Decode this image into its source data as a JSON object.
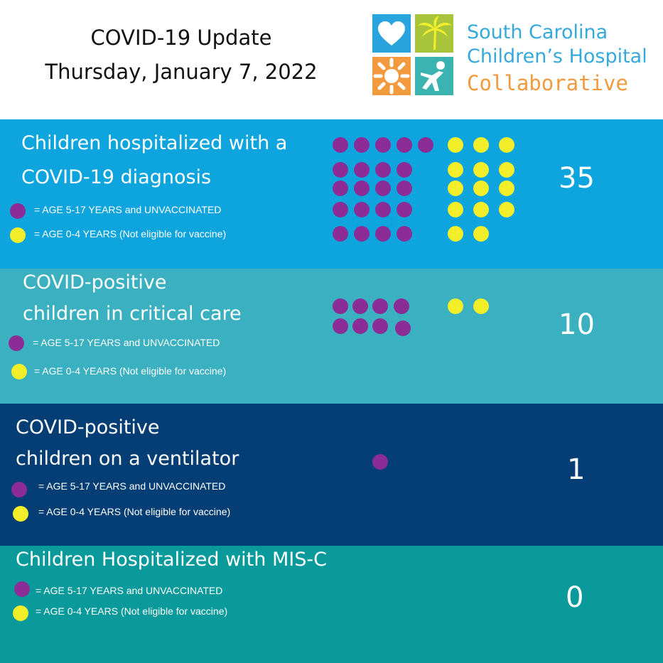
{
  "header": {
    "title_line1": "COVID-19 Update",
    "title_line2": "Thursday, January 7, 2022"
  },
  "logo": {
    "line1": "South Carolina",
    "line2": "Children’s Hospital",
    "line3": "Collaborative",
    "tiles": [
      {
        "icon": "heart-icon",
        "color": "#2aa4dd"
      },
      {
        "icon": "palm-tree-icon",
        "color": "#a8c43a"
      },
      {
        "icon": "sun-icon",
        "color": "#f29a3d"
      },
      {
        "icon": "child-figure-icon",
        "color": "#3bb3b0"
      }
    ]
  },
  "colors": {
    "purple": "#8b2c97",
    "yellow": "#f2ee2a",
    "logo_blue": "#35a8dc",
    "logo_orange": "#f29a3d"
  },
  "sections": [
    {
      "title_lines": [
        "Children hospitalized with a",
        "COVID-19 diagnosis"
      ],
      "legend_purple": "= AGE  5-17 YEARS  and UNVACCINATED",
      "legend_yellow": "= AGE 0-4 YEARS (Not eligible for vaccine)",
      "count": "35",
      "purple_count": 21,
      "yellow_count": 14,
      "background": "#0ea5df"
    },
    {
      "title_lines": [
        "COVID-positive",
        "children in critical care"
      ],
      "legend_purple": "= AGE 5-17 YEARS and UNVACCINATED",
      "legend_yellow": "= AGE 0-4 YEARS (Not eligible for vaccine)",
      "count": "10",
      "purple_count": 8,
      "yellow_count": 2,
      "background": "#3ab0c1"
    },
    {
      "title_lines": [
        "COVID-positive",
        "children on a ventilator"
      ],
      "legend_purple": "= AGE 5-17 YEARS and UNVACCINATED",
      "legend_yellow": "= AGE 0-4 YEARS (Not eligible for vaccine)",
      "count": "1",
      "purple_count": 1,
      "yellow_count": 0,
      "background": "#053e75"
    },
    {
      "title_lines": [
        "Children Hospitalized with MIS-C"
      ],
      "legend_purple": "= AGE 5-17 YEARS and UNVACCINATED",
      "legend_yellow": "= AGE 0-4 YEARS (Not eligible for vaccine)",
      "count": "0",
      "purple_count": 0,
      "yellow_count": 0,
      "background": "#0a9a9c"
    }
  ]
}
